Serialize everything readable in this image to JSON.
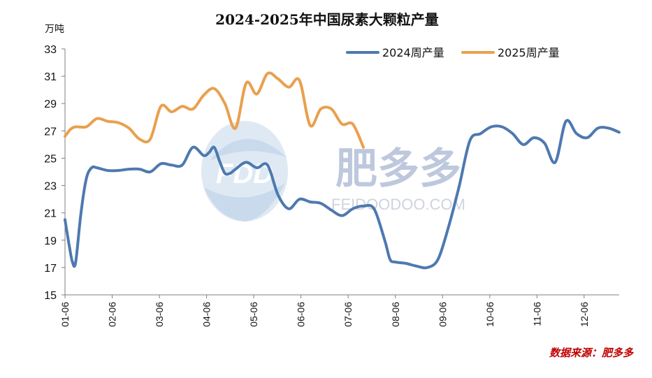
{
  "chart_data": {
    "type": "line",
    "title": "2024-2025年中国尿素大颗粒产量",
    "unit_label": "万吨",
    "ylim": [
      15,
      33
    ],
    "yticks": [
      15,
      17,
      19,
      21,
      23,
      25,
      27,
      29,
      31,
      33
    ],
    "xlim": [
      1,
      53
    ],
    "x_tick_labels": [
      "01-06",
      "02-06",
      "03-06",
      "04-06",
      "05-06",
      "06-06",
      "07-06",
      "08-06",
      "09-06",
      "10-06",
      "11-06",
      "12-06"
    ],
    "x_tick_positions": [
      1,
      5.43,
      9.86,
      14.29,
      18.71,
      23.14,
      27.57,
      32,
      36.43,
      40.86,
      45.29,
      49.71
    ],
    "legend_position": "top-right",
    "grid": false,
    "series": [
      {
        "name": "2024周产量",
        "color": "#4e79b0",
        "x": [
          1,
          1.4,
          1.7,
          2,
          2.5,
          3,
          3.5,
          4,
          5,
          6,
          7,
          8,
          9,
          10,
          11,
          12,
          13,
          14,
          14.5,
          15,
          15.5,
          16,
          16.5,
          17,
          18,
          19,
          20,
          21,
          22,
          23,
          24,
          25,
          26,
          27,
          28,
          29,
          30,
          31,
          31.5,
          32,
          33,
          34,
          35,
          36,
          37,
          38,
          39,
          40,
          41,
          42,
          43,
          44,
          45,
          46,
          47,
          48,
          49,
          50,
          51,
          52,
          53
        ],
        "y": [
          20.5,
          18.6,
          17.4,
          17.4,
          21,
          23.5,
          24.3,
          24.3,
          24.1,
          24.1,
          24.2,
          24.2,
          24,
          24.6,
          24.5,
          24.5,
          25.8,
          25.2,
          25.4,
          25.8,
          24.8,
          23.9,
          23.9,
          24.2,
          24.7,
          24.3,
          24.5,
          22.3,
          21.3,
          22,
          21.8,
          21.7,
          21.2,
          20.8,
          21.3,
          21.5,
          21.3,
          19,
          17.6,
          17.4,
          17.3,
          17.1,
          17,
          17.6,
          20,
          23,
          26.3,
          26.8,
          27.3,
          27.3,
          26.8,
          26,
          26.5,
          26.1,
          24.7,
          27.7,
          26.8,
          26.5,
          27.2,
          27.2,
          26.9
        ]
      },
      {
        "name": "2025周产量",
        "color": "#e9a04f",
        "x": [
          1,
          1.5,
          2,
          3,
          4,
          5,
          6,
          7,
          8,
          9,
          10,
          11,
          12,
          13,
          14,
          15,
          16,
          17,
          18,
          19,
          20,
          21,
          22,
          23,
          24,
          25,
          26,
          27,
          28,
          29
        ],
        "y": [
          26.6,
          27.1,
          27.3,
          27.3,
          27.9,
          27.7,
          27.6,
          27.2,
          26.4,
          26.4,
          28.8,
          28.4,
          28.8,
          28.6,
          29.6,
          30.1,
          29,
          27.2,
          30.5,
          29.7,
          31.2,
          30.8,
          30.2,
          30.7,
          27.4,
          28.6,
          28.6,
          27.5,
          27.5,
          25.8
        ]
      }
    ]
  },
  "watermark": {
    "brand_cn": "肥多多",
    "brand_logo_text": "FDD",
    "brand_url": "FEIDOODOO.COM"
  },
  "source_text": "数据来源：肥多多"
}
